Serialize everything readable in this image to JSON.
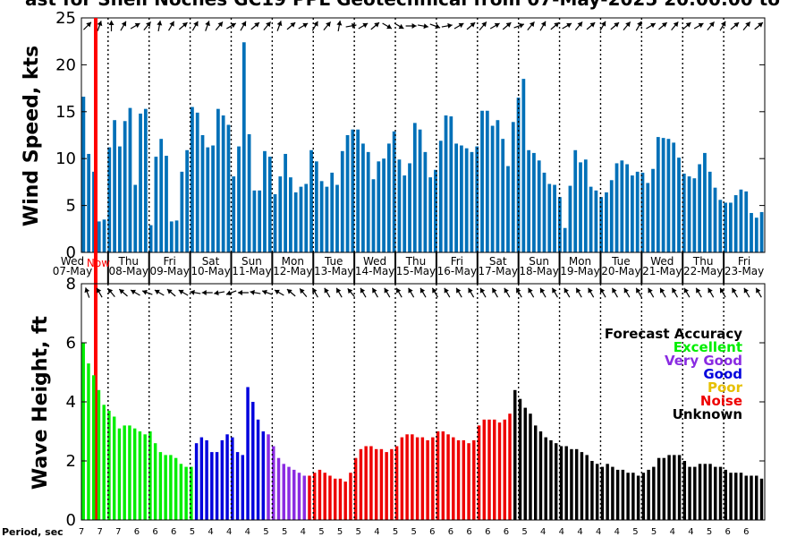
{
  "chart_data": [
    {
      "type": "bar",
      "title": "ast for Shell Noches   GC19 PPL  Geotechnical from 07-May-2025 20:00:00 to",
      "ylabel": "Wind Speed, kts",
      "ylim": [
        0,
        25
      ],
      "yticks": [
        "0",
        "5",
        "10",
        "15",
        "20",
        "25"
      ],
      "bar_color": "#0070b8",
      "values": [
        16.6,
        10.5,
        8.6,
        3.3,
        3.5,
        11.2,
        14.1,
        11.3,
        14.0,
        15.4,
        7.2,
        14.8,
        15.3,
        2.9,
        10.2,
        12.1,
        10.3,
        3.3,
        3.4,
        8.6,
        10.9,
        15.5,
        14.9,
        12.5,
        11.2,
        11.4,
        15.3,
        14.6,
        13.6,
        8.1,
        11.3,
        22.4,
        12.6,
        6.6,
        6.6,
        10.8,
        10.2,
        6.2,
        8.1,
        10.5,
        8.0,
        6.4,
        7.0,
        7.3,
        10.9,
        9.7,
        7.6,
        7.0,
        8.5,
        7.2,
        10.8,
        12.5,
        13.1,
        13.1,
        11.6,
        10.7,
        7.8,
        9.7,
        10.0,
        11.6,
        12.9,
        9.9,
        8.2,
        9.5,
        13.8,
        13.1,
        10.7,
        8.0,
        8.8,
        11.9,
        14.6,
        14.5,
        11.6,
        11.4,
        11.1,
        10.7,
        11.3,
        15.1,
        15.1,
        13.5,
        14.1,
        12.1,
        9.2,
        13.9,
        16.5,
        18.5,
        10.9,
        10.6,
        9.8,
        8.5,
        7.3,
        7.2,
        5.9,
        2.6,
        7.1,
        10.9,
        9.6,
        9.9,
        7.0,
        6.6,
        5.9,
        6.4,
        7.7,
        9.5,
        9.8,
        9.4,
        8.2,
        8.6,
        8.5,
        7.4,
        8.9,
        12.3,
        12.2,
        12.1,
        11.7,
        10.1,
        8.4,
        8.1,
        7.9,
        9.4,
        10.6,
        8.6,
        6.9,
        5.6,
        5.3,
        5.3,
        6.1,
        6.7,
        6.5,
        4.2,
        3.7,
        4.3
      ],
      "direction_arrows_deg": [
        225,
        200,
        180,
        210,
        240,
        220,
        190,
        210,
        230,
        210,
        200,
        220,
        240,
        210,
        230,
        220,
        200,
        230,
        240,
        210,
        220,
        190,
        260,
        240,
        230,
        300,
        300,
        270,
        280,
        290,
        260,
        240,
        230,
        220,
        240,
        230,
        250,
        220,
        210,
        230,
        240,
        220,
        230,
        210,
        230,
        220,
        210,
        240,
        230,
        220,
        230,
        240,
        220,
        210,
        230,
        220,
        230
      ]
    },
    {
      "type": "bar",
      "ylabel": "Wave Height, ft",
      "ylim": [
        0,
        8
      ],
      "yticks": [
        "0",
        "2",
        "4",
        "6",
        "8"
      ],
      "values": [
        6.0,
        5.3,
        4.9,
        4.4,
        3.9,
        3.7,
        3.5,
        3.1,
        3.2,
        3.2,
        3.1,
        3.0,
        2.9,
        3.0,
        2.6,
        2.3,
        2.2,
        2.2,
        2.1,
        1.9,
        1.8,
        1.8,
        2.6,
        2.8,
        2.7,
        2.3,
        2.3,
        2.7,
        2.9,
        2.8,
        2.3,
        2.2,
        4.5,
        4.0,
        3.4,
        3.0,
        2.9,
        2.5,
        2.1,
        1.9,
        1.8,
        1.7,
        1.6,
        1.5,
        1.5,
        1.6,
        1.7,
        1.6,
        1.5,
        1.4,
        1.4,
        1.3,
        1.6,
        2.1,
        2.4,
        2.5,
        2.5,
        2.4,
        2.4,
        2.3,
        2.4,
        2.5,
        2.8,
        2.9,
        2.9,
        2.8,
        2.8,
        2.7,
        2.8,
        3.0,
        3.0,
        2.9,
        2.8,
        2.7,
        2.7,
        2.6,
        2.7,
        3.2,
        3.4,
        3.4,
        3.4,
        3.3,
        3.4,
        3.6,
        4.4,
        4.1,
        3.8,
        3.6,
        3.2,
        3.0,
        2.8,
        2.7,
        2.6,
        2.5,
        2.5,
        2.4,
        2.4,
        2.3,
        2.2,
        2.0,
        1.9,
        1.8,
        1.9,
        1.8,
        1.7,
        1.7,
        1.6,
        1.6,
        1.5,
        1.6,
        1.7,
        1.8,
        2.1,
        2.1,
        2.2,
        2.2,
        2.2,
        2.0,
        1.8,
        1.8,
        1.9,
        1.9,
        1.9,
        1.8,
        1.8,
        1.7,
        1.6,
        1.6,
        1.6,
        1.5,
        1.5,
        1.5,
        1.4
      ],
      "accuracy_colors": {
        "Excellent": "#00ee00",
        "Very Good": "#8a2be2",
        "Good": "#0000dd",
        "Poor": "#e6c000",
        "Noise": "#ee0000",
        "Unknown": "#000000"
      },
      "accuracy_segments": [
        {
          "category": "Excellent",
          "count": 22
        },
        {
          "category": "Good",
          "count": 14
        },
        {
          "category": "Very Good",
          "count": 8
        },
        {
          "category": "Noise",
          "count": 40
        },
        {
          "category": "Unknown",
          "count": 48
        }
      ],
      "direction_arrows_deg": [
        160,
        150,
        140,
        130,
        120,
        110,
        120,
        130,
        120,
        100,
        90,
        80,
        70,
        90,
        100,
        110,
        120,
        130,
        140,
        150,
        150,
        150,
        140,
        150,
        150,
        150,
        150,
        150,
        150,
        150,
        150,
        150,
        150,
        150,
        150,
        150,
        150,
        150,
        150,
        150,
        150,
        150,
        150,
        150,
        150,
        150,
        150,
        150,
        150,
        150,
        150,
        150,
        150,
        150,
        150,
        150,
        150
      ]
    }
  ],
  "now_label": "Now",
  "now_color": "#ff0000",
  "days": [
    {
      "name": "Wed",
      "date": "07-May"
    },
    {
      "name": "Thu",
      "date": "08-May"
    },
    {
      "name": "Fri",
      "date": "09-May"
    },
    {
      "name": "Sat",
      "date": "10-May"
    },
    {
      "name": "Sun",
      "date": "11-May"
    },
    {
      "name": "Mon",
      "date": "12-May"
    },
    {
      "name": "Tue",
      "date": "13-May"
    },
    {
      "name": "Wed",
      "date": "14-May"
    },
    {
      "name": "Thu",
      "date": "15-May"
    },
    {
      "name": "Fri",
      "date": "16-May"
    },
    {
      "name": "Sat",
      "date": "17-May"
    },
    {
      "name": "Sun",
      "date": "18-May"
    },
    {
      "name": "Mon",
      "date": "19-May"
    },
    {
      "name": "Tue",
      "date": "20-May"
    },
    {
      "name": "Wed",
      "date": "21-May"
    },
    {
      "name": "Thu",
      "date": "22-May"
    },
    {
      "name": "Fri",
      "date": "23-May"
    }
  ],
  "period_label": "Period, sec",
  "periods": [
    "7",
    "7",
    "7",
    "6",
    "6",
    "6",
    "5",
    "4",
    "4",
    "4",
    "5",
    "5",
    "4",
    "5",
    "5",
    "5",
    "4",
    "5",
    "5",
    "6",
    "6",
    "6",
    "6",
    "6",
    "5",
    "4",
    "4",
    "4",
    "4",
    "4",
    "5",
    "5",
    "4",
    "4",
    "5",
    "6",
    "6"
  ],
  "legend": {
    "title": "Forecast Accuracy",
    "items": [
      {
        "label": "Excellent",
        "color": "#00ee00"
      },
      {
        "label": "Very Good",
        "color": "#8a2be2"
      },
      {
        "label": "Good",
        "color": "#0000dd"
      },
      {
        "label": "Poor",
        "color": "#e6c000"
      },
      {
        "label": "Noise",
        "color": "#ee0000"
      },
      {
        "label": "Unknown",
        "color": "#000000"
      }
    ]
  }
}
